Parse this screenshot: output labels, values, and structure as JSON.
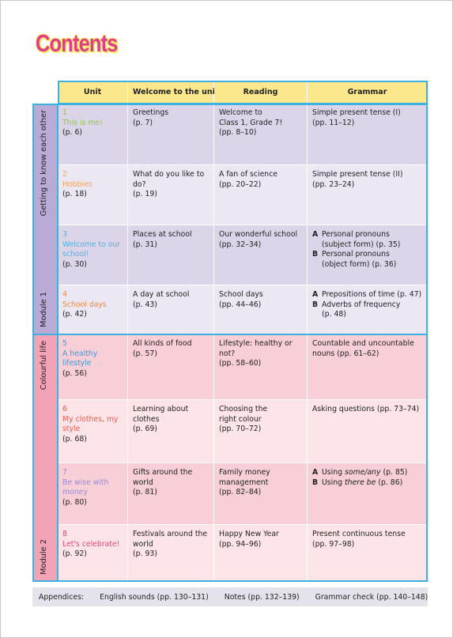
{
  "title": "Contents",
  "header": [
    "Unit",
    "Welcome to the unit",
    "Reading",
    "Grammar"
  ],
  "modules": [
    {
      "name": "Getting to know each other",
      "label": "Module 1",
      "units": [
        {
          "number": 1,
          "title": [
            "This is me!"
          ],
          "page": "(p. 6)",
          "welcome": [
            "Greetings",
            "(p. 7)"
          ],
          "reading": [
            "Welcome to",
            "Class 1, Grade 7!",
            "(pp. 8–10)"
          ],
          "grammar": [
            "Simple present tense (I)",
            "(pp. 11–12)"
          ]
        },
        {
          "number": 2,
          "title": [
            "Hobbies"
          ],
          "page": "(p. 18)",
          "welcome": [
            "What do you like to",
            "do?",
            "(p. 19)"
          ],
          "reading": [
            "A fan of science",
            "(pp. 20–22)"
          ],
          "grammar": [
            "Simple present tense (II)",
            "(pp. 23–24)"
          ]
        },
        {
          "number": 3,
          "title": [
            "Welcome to our",
            "school!"
          ],
          "page": "(p. 30)",
          "welcome": [
            "Places at school",
            "(p. 31)"
          ],
          "reading": [
            "Our wonderful school",
            "(pp. 32–34)"
          ],
          "grammar": [
            {
              "marker": "A",
              "lines": [
                "Personal pronouns",
                "(subject form) (p. 35)"
              ]
            },
            {
              "marker": "B",
              "lines": [
                "Personal pronouns",
                "(object form) (p. 36)"
              ]
            }
          ]
        },
        {
          "number": 4,
          "title": [
            "School days"
          ],
          "page": "(p. 42)",
          "welcome": [
            "A day at school",
            "(p. 43)"
          ],
          "reading": [
            "School days",
            "(pp. 44–46)"
          ],
          "grammar": [
            {
              "marker": "A",
              "lines": [
                "Prepositions of time (p. 47)"
              ]
            },
            {
              "marker": "B",
              "lines": [
                "Adverbs of frequency",
                "(p. 48)"
              ]
            }
          ]
        }
      ]
    },
    {
      "name": "Colourful life",
      "label": "Module 2",
      "units": [
        {
          "number": 5,
          "title": [
            "A healthy",
            "lifestyle"
          ],
          "page": "(p. 56)",
          "welcome": [
            "All kinds of food",
            "(p. 57)"
          ],
          "reading": [
            "Lifestyle: healthy or",
            "not?",
            "(pp. 58–60)"
          ],
          "grammar": [
            "Countable and uncountable",
            "nouns (pp. 61–62)"
          ]
        },
        {
          "number": 6,
          "title": [
            "My clothes, my",
            "style"
          ],
          "page": "(p. 68)",
          "welcome": [
            "Learning about",
            "clothes",
            "(p. 69)"
          ],
          "reading": [
            "Choosing the",
            "right colour",
            "(pp. 70–72)"
          ],
          "grammar": [
            "Asking questions (pp. 73–74)"
          ]
        },
        {
          "number": 7,
          "title": [
            "Be wise with",
            "money"
          ],
          "page": "(p. 80)",
          "welcome": [
            "Gifts around the",
            "world",
            "(p. 81)"
          ],
          "reading": [
            "Family money",
            "management",
            "(pp. 82–84)"
          ],
          "grammar": [
            {
              "marker": "A",
              "parts": [
                "Using",
                "some/any",
                "(p. 85)"
              ]
            },
            {
              "marker": "B",
              "parts": [
                "Using",
                "there be",
                "(p. 86)"
              ]
            }
          ]
        },
        {
          "number": 8,
          "title": [
            "Let's celebrate!"
          ],
          "page": "(p. 92)",
          "welcome": [
            "Festivals around the",
            "world",
            "(p. 93)"
          ],
          "reading": [
            "Happy New Year",
            "(pp. 94–96)"
          ],
          "grammar": [
            "Present continuous tense",
            "(pp. 97–98)"
          ]
        }
      ]
    }
  ],
  "appendices": {
    "label": "Appendices:",
    "items": [
      "English sounds (pp. 130–131)",
      "Notes (pp. 132–139)",
      "Grammar check (pp. 140–148)"
    ]
  }
}
